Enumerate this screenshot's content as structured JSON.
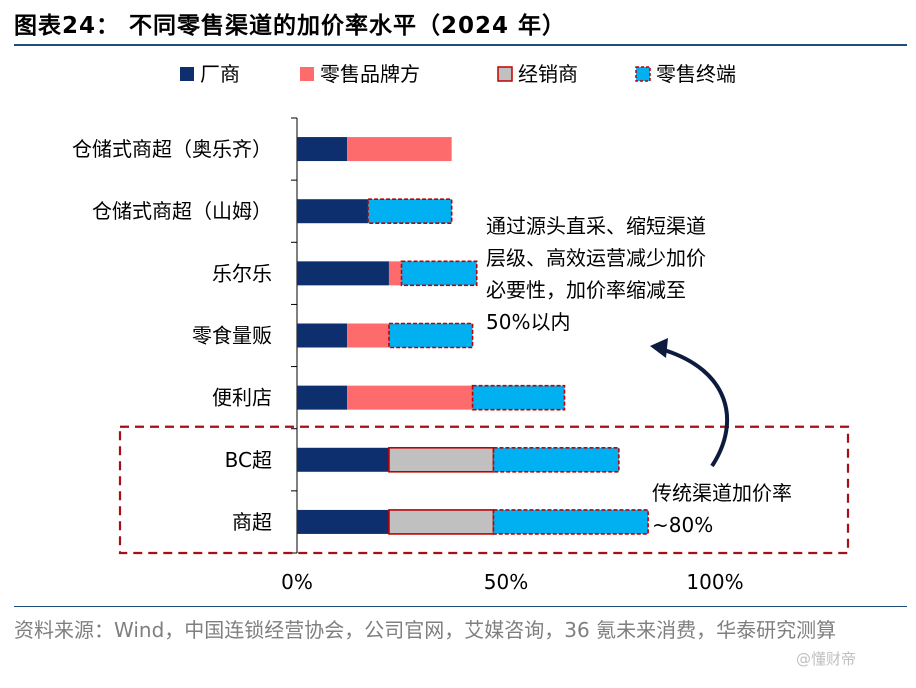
{
  "title": "图表24： 不同零售渠道的加价率水平（2024 年）",
  "source": "资料来源：Wind，中国连锁经营协会，公司官网，艾媒咨询，36 氪未来消费，华泰研究测算",
  "watermark": "@懂财帝",
  "annotations": {
    "top_text": [
      "通过源头直采、缩短渠道",
      "层级、高效运营减少加价",
      "必要性，加价率缩减至",
      "50%以内"
    ],
    "bottom_text": [
      "传统渠道加价率",
      "~80%"
    ]
  },
  "chart_data": {
    "type": "bar",
    "orientation": "horizontal",
    "stacked": true,
    "title": "不同零售渠道的加价率水平（2024 年）",
    "categories": [
      "仓储式商超（奥乐齐）",
      "仓储式商超（山姆）",
      "乐尔乐",
      "零食量贩",
      "便利店",
      "BC超",
      "商超"
    ],
    "series": [
      {
        "name": "厂商",
        "color": "#0d2f6e",
        "values": [
          12,
          17,
          22,
          12,
          12,
          22,
          22
        ]
      },
      {
        "name": "零售品牌方",
        "color": "#fd6b6d",
        "values": [
          25,
          0,
          3,
          10,
          30,
          0,
          0
        ]
      },
      {
        "name": "经销商",
        "color": "#c0c0c0",
        "values": [
          0,
          0,
          0,
          0,
          0,
          25,
          25
        ]
      },
      {
        "name": "零售终端",
        "color": "#00b0f0",
        "values": [
          0,
          20,
          18,
          20,
          22,
          30,
          37
        ]
      }
    ],
    "xlim": [
      0,
      100
    ],
    "x_ticks": [
      "0%",
      "50%",
      "100%"
    ],
    "legend_position": "top",
    "highlight_group": [
      "BC超",
      "商超"
    ]
  }
}
